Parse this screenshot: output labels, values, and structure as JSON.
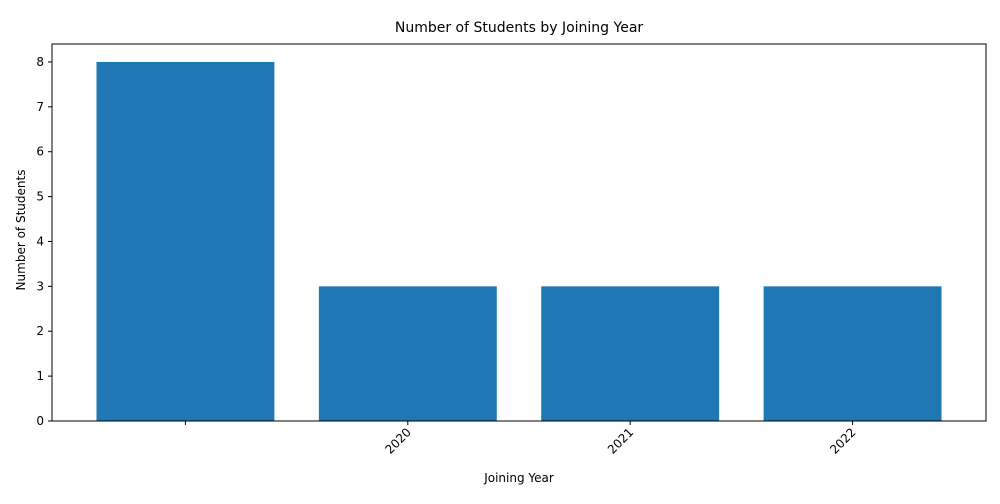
{
  "chart_data": {
    "type": "bar",
    "title": "Number of Students by Joining Year",
    "xlabel": "Joining Year",
    "ylabel": "Number of Students",
    "categories": [
      "",
      "2020",
      "2021",
      "2022"
    ],
    "values": [
      8,
      3,
      3,
      3
    ],
    "ylim": [
      0,
      8.4
    ],
    "yticks": [
      0,
      1,
      2,
      3,
      4,
      5,
      6,
      7,
      8
    ],
    "bar_color": "#1f77b4",
    "grid": false,
    "legend": "none"
  }
}
